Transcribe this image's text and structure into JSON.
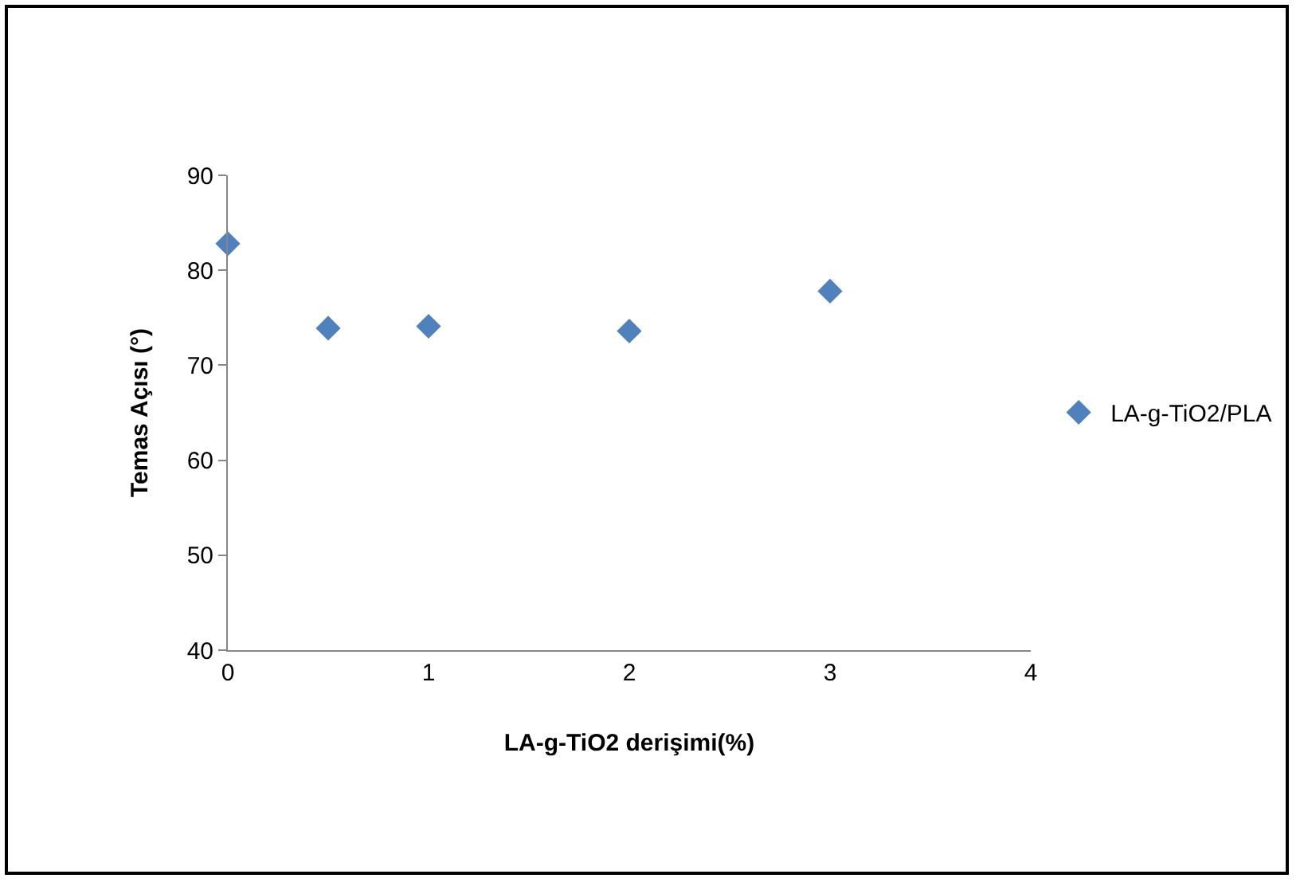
{
  "chart_data": {
    "type": "scatter",
    "xlabel": "LA-g-TiO2 derişimi(%)",
    "ylabel": "Temas Açısı (°)",
    "series": [
      {
        "name": "LA-g-TiO2/PLA",
        "color": "#4f81bd",
        "x": [
          0,
          0.5,
          1,
          2,
          3
        ],
        "values": [
          82.8,
          73.9,
          74.1,
          73.6,
          77.8
        ]
      }
    ],
    "xlim": [
      0,
      4
    ],
    "xticks": [
      0,
      1,
      2,
      3,
      4
    ],
    "ylim": [
      40,
      90
    ],
    "yticks": [
      40,
      50,
      60,
      70,
      80,
      90
    ],
    "marker": "diamond",
    "grid": false,
    "legend": "right"
  }
}
